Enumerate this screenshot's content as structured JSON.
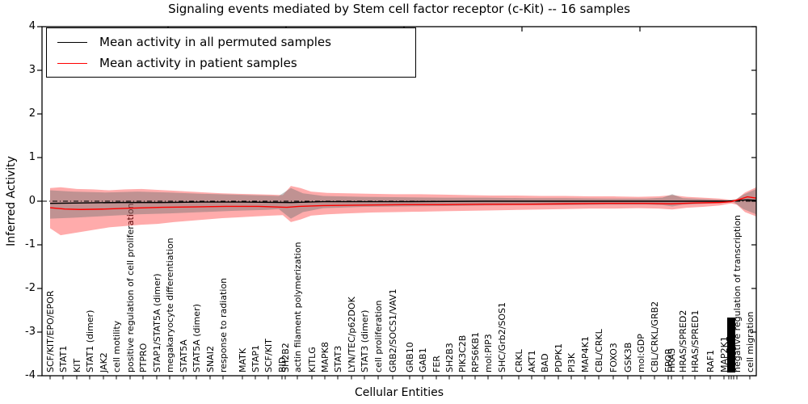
{
  "chart_data": {
    "type": "line",
    "title": "Signaling events mediated by Stem cell factor receptor (c-Kit) -- 16 samples",
    "xlabel": "Cellular Entities",
    "ylabel": "Inferred Activity",
    "ylim": [
      -4,
      4
    ],
    "yticks": [
      "4",
      "3",
      "2",
      "1",
      "0",
      "-1",
      "-2",
      "-3",
      "-4"
    ],
    "grid": false,
    "legend_position": "upper left",
    "legend": [
      {
        "label": "Mean activity in all permuted samples",
        "color": "#000000"
      },
      {
        "label": "Mean activity in patient samples",
        "color": "#ff0000"
      }
    ],
    "zero_line_style": "dashdot",
    "colors": {
      "permuted_line": "#000000",
      "patient_line": "#ff0000",
      "patient_band": "rgba(255,0,0,0.33)",
      "permuted_band": "rgba(115,115,115,0.45)",
      "frame": "#000000"
    },
    "entities": [
      {
        "x": 62,
        "label": "SCF/KIT/EPO/EPOR"
      },
      {
        "x": 78,
        "label": "STAT1"
      },
      {
        "x": 95,
        "label": "KIT"
      },
      {
        "x": 111,
        "label": "STAT1 (dimer)"
      },
      {
        "x": 128,
        "label": "JAK2"
      },
      {
        "x": 144,
        "label": "cell motility"
      },
      {
        "x": 161,
        "label": "positive regulation of cell proliferation"
      },
      {
        "x": 177,
        "label": "PTPRO"
      },
      {
        "x": 194,
        "label": "STAP1/STAT5A (dimer)"
      },
      {
        "x": 210,
        "label": "megakaryocyte differentiation"
      },
      {
        "x": 227,
        "label": "STAT5A"
      },
      {
        "x": 243,
        "label": "STAT5A (dimer)"
      },
      {
        "x": 260,
        "label": "SNAI2"
      },
      {
        "x": 276,
        "label": "response to radiation"
      },
      {
        "x": 300,
        "label": "MATK"
      },
      {
        "x": 316,
        "label": "STAP1"
      },
      {
        "x": 332,
        "label": "SCF/KIT"
      },
      {
        "x": 349,
        "label": "BID"
      },
      {
        "x": 353,
        "label": "SH2B2"
      },
      {
        "x": 368,
        "label": "actin filament polymerization"
      },
      {
        "x": 386,
        "label": "KITLG"
      },
      {
        "x": 402,
        "label": "MAPK8"
      },
      {
        "x": 418,
        "label": "STAT3"
      },
      {
        "x": 435,
        "label": "LYN/TEC/p62DOK"
      },
      {
        "x": 451,
        "label": "STAT3 (dimer)"
      },
      {
        "x": 468,
        "label": "cell proliferation"
      },
      {
        "x": 486,
        "label": "GRB2/SOCS1/VAV1"
      },
      {
        "x": 507,
        "label": "GRB10"
      },
      {
        "x": 523,
        "label": "GAB1"
      },
      {
        "x": 540,
        "label": "FER"
      },
      {
        "x": 556,
        "label": "SH2B3"
      },
      {
        "x": 572,
        "label": "PIK3C2B"
      },
      {
        "x": 588,
        "label": "RPS6KB1"
      },
      {
        "x": 604,
        "label": "mol:PIP3"
      },
      {
        "x": 621,
        "label": "SHC/Grb2/SOS1"
      },
      {
        "x": 642,
        "label": "CRKL"
      },
      {
        "x": 658,
        "label": "AKT1"
      },
      {
        "x": 674,
        "label": "BAD"
      },
      {
        "x": 691,
        "label": "PDPK1"
      },
      {
        "x": 707,
        "label": "PI3K"
      },
      {
        "x": 724,
        "label": "MAP4K1"
      },
      {
        "x": 741,
        "label": "CBL/CRKL"
      },
      {
        "x": 759,
        "label": "FOXO3"
      },
      {
        "x": 777,
        "label": "GSK3B"
      },
      {
        "x": 793,
        "label": "mol:GDP"
      },
      {
        "x": 810,
        "label": "CBL/CRKL/GRB2"
      },
      {
        "x": 827,
        "label": "EPOR"
      },
      {
        "x": 831,
        "label": "HRAS"
      },
      {
        "x": 845,
        "label": "HRAS/SPRED2"
      },
      {
        "x": 860,
        "label": "HRAS/SPRED1"
      },
      {
        "x": 879,
        "label": "RAF1"
      },
      {
        "x": 896,
        "label": "MAP2K1"
      },
      {
        "x": 912,
        "label": "negative regulation of transcription"
      },
      {
        "x": 928,
        "label": "cell migration"
      }
    ],
    "unreadable_label_cluster": {
      "x": 905,
      "note": "several overlapping tick labels rendered as a solid black bar"
    },
    "top_axis_ticks_x": [
      208,
      354,
      500,
      646,
      792
    ],
    "series": [
      {
        "name": "Mean activity in all permuted samples",
        "color": "#000000",
        "style": "solid",
        "points": [
          [
            62,
            -0.05
          ],
          [
            100,
            -0.04
          ],
          [
            150,
            -0.03
          ],
          [
            200,
            -0.03
          ],
          [
            250,
            -0.02
          ],
          [
            300,
            -0.02
          ],
          [
            360,
            -0.03
          ],
          [
            400,
            -0.01
          ],
          [
            500,
            -0.01
          ],
          [
            600,
            0.0
          ],
          [
            700,
            0.0
          ],
          [
            800,
            0.0
          ],
          [
            850,
            0.0
          ],
          [
            900,
            0.0
          ],
          [
            915,
            0.02
          ],
          [
            925,
            0.03
          ],
          [
            936,
            0.02
          ]
        ]
      },
      {
        "name": "Mean activity in patient samples",
        "color": "#ff0000",
        "style": "solid",
        "points": [
          [
            62,
            -0.15
          ],
          [
            80,
            -0.18
          ],
          [
            100,
            -0.19
          ],
          [
            130,
            -0.18
          ],
          [
            160,
            -0.16
          ],
          [
            200,
            -0.14
          ],
          [
            240,
            -0.13
          ],
          [
            280,
            -0.12
          ],
          [
            320,
            -0.12
          ],
          [
            355,
            -0.14
          ],
          [
            370,
            -0.12
          ],
          [
            400,
            -0.1
          ],
          [
            450,
            -0.09
          ],
          [
            500,
            -0.08
          ],
          [
            550,
            -0.08
          ],
          [
            600,
            -0.07
          ],
          [
            650,
            -0.07
          ],
          [
            700,
            -0.06
          ],
          [
            750,
            -0.05
          ],
          [
            800,
            -0.05
          ],
          [
            830,
            -0.06
          ],
          [
            860,
            -0.04
          ],
          [
            890,
            -0.03
          ],
          [
            905,
            -0.01
          ],
          [
            915,
            0.04
          ],
          [
            925,
            0.1
          ],
          [
            936,
            0.07
          ]
        ]
      }
    ],
    "bands": [
      {
        "name": "patient samples spread",
        "color_key": "patient_band",
        "top": [
          [
            62,
            0.3
          ],
          [
            75,
            0.32
          ],
          [
            95,
            0.28
          ],
          [
            115,
            0.27
          ],
          [
            135,
            0.25
          ],
          [
            155,
            0.27
          ],
          [
            175,
            0.28
          ],
          [
            195,
            0.26
          ],
          [
            215,
            0.24
          ],
          [
            235,
            0.22
          ],
          [
            255,
            0.2
          ],
          [
            275,
            0.18
          ],
          [
            295,
            0.17
          ],
          [
            315,
            0.16
          ],
          [
            335,
            0.15
          ],
          [
            350,
            0.14
          ],
          [
            360,
            0.35
          ],
          [
            372,
            0.3
          ],
          [
            385,
            0.22
          ],
          [
            405,
            0.19
          ],
          [
            430,
            0.18
          ],
          [
            460,
            0.17
          ],
          [
            490,
            0.16
          ],
          [
            520,
            0.16
          ],
          [
            550,
            0.15
          ],
          [
            580,
            0.14
          ],
          [
            610,
            0.13
          ],
          [
            640,
            0.13
          ],
          [
            670,
            0.12
          ],
          [
            700,
            0.12
          ],
          [
            730,
            0.11
          ],
          [
            760,
            0.11
          ],
          [
            790,
            0.1
          ],
          [
            815,
            0.11
          ],
          [
            832,
            0.14
          ],
          [
            850,
            0.1
          ],
          [
            870,
            0.08
          ],
          [
            890,
            0.06
          ],
          [
            905,
            0.03
          ],
          [
            912,
            0.05
          ],
          [
            922,
            0.2
          ],
          [
            936,
            0.32
          ]
        ],
        "bottom": [
          [
            62,
            -0.62
          ],
          [
            75,
            -0.78
          ],
          [
            95,
            -0.72
          ],
          [
            115,
            -0.66
          ],
          [
            135,
            -0.6
          ],
          [
            155,
            -0.57
          ],
          [
            175,
            -0.54
          ],
          [
            195,
            -0.52
          ],
          [
            215,
            -0.48
          ],
          [
            235,
            -0.45
          ],
          [
            255,
            -0.42
          ],
          [
            275,
            -0.39
          ],
          [
            295,
            -0.37
          ],
          [
            315,
            -0.35
          ],
          [
            335,
            -0.33
          ],
          [
            350,
            -0.32
          ],
          [
            360,
            -0.48
          ],
          [
            372,
            -0.42
          ],
          [
            385,
            -0.33
          ],
          [
            405,
            -0.3
          ],
          [
            430,
            -0.28
          ],
          [
            460,
            -0.26
          ],
          [
            490,
            -0.25
          ],
          [
            520,
            -0.24
          ],
          [
            550,
            -0.23
          ],
          [
            580,
            -0.22
          ],
          [
            610,
            -0.21
          ],
          [
            640,
            -0.2
          ],
          [
            670,
            -0.19
          ],
          [
            700,
            -0.18
          ],
          [
            730,
            -0.17
          ],
          [
            760,
            -0.17
          ],
          [
            790,
            -0.16
          ],
          [
            815,
            -0.17
          ],
          [
            832,
            -0.19
          ],
          [
            850,
            -0.15
          ],
          [
            870,
            -0.13
          ],
          [
            890,
            -0.1
          ],
          [
            905,
            -0.05
          ],
          [
            912,
            -0.08
          ],
          [
            922,
            -0.25
          ],
          [
            936,
            -0.35
          ]
        ]
      },
      {
        "name": "permuted samples spread",
        "color_key": "permuted_band",
        "top": [
          [
            62,
            0.25
          ],
          [
            90,
            0.22
          ],
          [
            130,
            0.2
          ],
          [
            170,
            0.22
          ],
          [
            210,
            0.2
          ],
          [
            250,
            0.17
          ],
          [
            290,
            0.15
          ],
          [
            330,
            0.13
          ],
          [
            345,
            0.12
          ],
          [
            360,
            0.3
          ],
          [
            375,
            0.18
          ],
          [
            400,
            0.12
          ],
          [
            450,
            0.1
          ],
          [
            500,
            0.09
          ],
          [
            550,
            0.08
          ],
          [
            600,
            0.08
          ],
          [
            650,
            0.07
          ],
          [
            700,
            0.07
          ],
          [
            750,
            0.06
          ],
          [
            800,
            0.06
          ],
          [
            820,
            0.08
          ],
          [
            832,
            0.16
          ],
          [
            845,
            0.07
          ],
          [
            870,
            0.05
          ],
          [
            895,
            0.03
          ],
          [
            908,
            0.01
          ],
          [
            920,
            0.15
          ],
          [
            936,
            0.28
          ]
        ],
        "bottom": [
          [
            62,
            -0.4
          ],
          [
            90,
            -0.38
          ],
          [
            130,
            -0.34
          ],
          [
            170,
            -0.3
          ],
          [
            210,
            -0.28
          ],
          [
            250,
            -0.25
          ],
          [
            290,
            -0.22
          ],
          [
            330,
            -0.2
          ],
          [
            345,
            -0.18
          ],
          [
            360,
            -0.4
          ],
          [
            375,
            -0.25
          ],
          [
            400,
            -0.16
          ],
          [
            450,
            -0.13
          ],
          [
            500,
            -0.12
          ],
          [
            550,
            -0.11
          ],
          [
            600,
            -0.1
          ],
          [
            650,
            -0.09
          ],
          [
            700,
            -0.09
          ],
          [
            750,
            -0.08
          ],
          [
            800,
            -0.08
          ],
          [
            820,
            -0.09
          ],
          [
            832,
            -0.12
          ],
          [
            845,
            -0.08
          ],
          [
            870,
            -0.06
          ],
          [
            895,
            -0.04
          ],
          [
            908,
            -0.02
          ],
          [
            920,
            -0.18
          ],
          [
            936,
            -0.3
          ]
        ]
      }
    ]
  }
}
